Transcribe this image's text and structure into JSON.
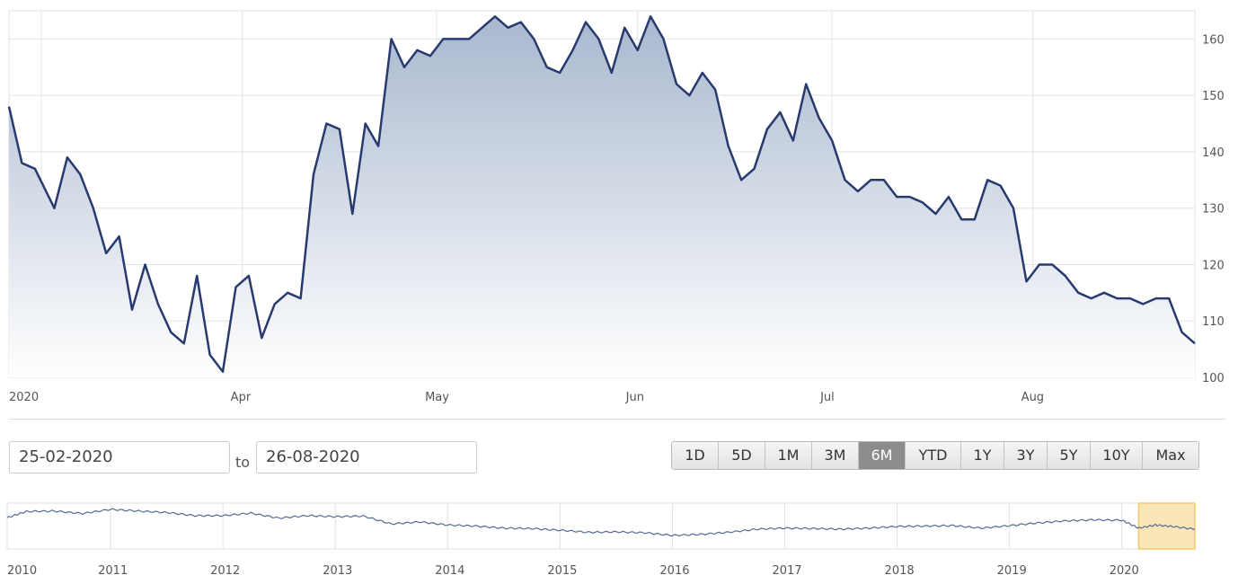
{
  "chart_data": {
    "type": "area",
    "y_ticks": [
      100,
      110,
      120,
      130,
      140,
      150,
      160
    ],
    "ylim": [
      100,
      165
    ],
    "x_labels": [
      "2020",
      "Apr",
      "May",
      "Jun",
      "Jul",
      "Aug"
    ],
    "x_label_dates": [
      "2020-03-01",
      "2020-04-01",
      "2020-05-01",
      "2020-06-01",
      "2020-07-01",
      "2020-08-01"
    ],
    "xlim": [
      "2020-02-25",
      "2020-08-26"
    ],
    "grid": true,
    "series": [
      {
        "x": [
          "2020-02-25",
          "2020-02-27",
          "2020-02-29",
          "2020-03-03",
          "2020-03-05",
          "2020-03-07",
          "2020-03-09",
          "2020-03-11",
          "2020-03-13",
          "2020-03-15",
          "2020-03-17",
          "2020-03-19",
          "2020-03-21",
          "2020-03-23",
          "2020-03-25",
          "2020-03-27",
          "2020-03-29",
          "2020-03-31",
          "2020-04-02",
          "2020-04-04",
          "2020-04-06",
          "2020-04-08",
          "2020-04-10",
          "2020-04-12",
          "2020-04-14",
          "2020-04-16",
          "2020-04-18",
          "2020-04-20",
          "2020-04-22",
          "2020-04-24",
          "2020-04-26",
          "2020-04-28",
          "2020-04-30",
          "2020-05-02",
          "2020-05-04",
          "2020-05-06",
          "2020-05-08",
          "2020-05-10",
          "2020-05-12",
          "2020-05-14",
          "2020-05-16",
          "2020-05-18",
          "2020-05-20",
          "2020-05-22",
          "2020-05-24",
          "2020-05-26",
          "2020-05-28",
          "2020-05-30",
          "2020-06-01",
          "2020-06-03",
          "2020-06-05",
          "2020-06-07",
          "2020-06-09",
          "2020-06-11",
          "2020-06-13",
          "2020-06-15",
          "2020-06-17",
          "2020-06-19",
          "2020-06-21",
          "2020-06-23",
          "2020-06-25",
          "2020-06-27",
          "2020-06-29",
          "2020-07-01",
          "2020-07-03",
          "2020-07-05",
          "2020-07-07",
          "2020-07-09",
          "2020-07-11",
          "2020-07-13",
          "2020-07-15",
          "2020-07-17",
          "2020-07-19",
          "2020-07-21",
          "2020-07-23",
          "2020-07-25",
          "2020-07-27",
          "2020-07-29",
          "2020-07-31",
          "2020-08-02",
          "2020-08-04",
          "2020-08-06",
          "2020-08-08",
          "2020-08-10",
          "2020-08-12",
          "2020-08-14",
          "2020-08-16",
          "2020-08-18",
          "2020-08-20",
          "2020-08-22",
          "2020-08-24",
          "2020-08-26"
        ],
        "y": [
          148,
          138,
          137,
          130,
          139,
          136,
          130,
          122,
          125,
          112,
          120,
          113,
          108,
          106,
          118,
          104,
          101,
          116,
          118,
          107,
          113,
          115,
          114,
          136,
          145,
          144,
          129,
          145,
          141,
          160,
          155,
          158,
          157,
          160,
          160,
          160,
          162,
          164,
          162,
          163,
          160,
          155,
          154,
          158,
          163,
          160,
          154,
          162,
          158,
          164,
          160,
          152,
          150,
          154,
          151,
          141,
          135,
          137,
          144,
          147,
          142,
          152,
          146,
          142,
          135,
          133,
          135,
          135,
          132,
          132,
          131,
          129,
          132,
          128,
          128,
          135,
          134,
          130,
          117,
          120,
          120,
          118,
          115,
          114,
          115,
          114,
          114,
          113,
          114,
          114,
          108,
          106
        ]
      }
    ]
  },
  "nav_chart": {
    "type": "line",
    "x_labels": [
      "2010",
      "2011",
      "2012",
      "2013",
      "2014",
      "2015",
      "2016",
      "2017",
      "2018",
      "2019",
      "2020"
    ],
    "x_label_years": [
      2010.0,
      2011.0,
      2012.0,
      2013.0,
      2014.0,
      2015.0,
      2016.0,
      2017.0,
      2018.0,
      2019.0,
      2020.0
    ],
    "xlim": [
      2010.08,
      2020.65
    ],
    "ylim": [
      80,
      300
    ],
    "x": [
      2010.08,
      2010.25,
      2010.5,
      2010.75,
      2011.0,
      2011.25,
      2011.5,
      2011.75,
      2012.0,
      2012.25,
      2012.5,
      2012.75,
      2013.0,
      2013.25,
      2013.5,
      2013.75,
      2014.0,
      2014.25,
      2014.5,
      2014.75,
      2015.0,
      2015.25,
      2015.5,
      2015.75,
      2016.0,
      2016.25,
      2016.5,
      2016.75,
      2017.0,
      2017.25,
      2017.5,
      2017.75,
      2018.0,
      2018.25,
      2018.5,
      2018.75,
      2019.0,
      2019.25,
      2019.5,
      2019.75,
      2020.0,
      2020.15,
      2020.3,
      2020.45,
      2020.65
    ],
    "y": [
      230,
      260,
      262,
      250,
      270,
      262,
      255,
      240,
      240,
      252,
      228,
      240,
      235,
      238,
      200,
      210,
      195,
      190,
      180,
      178,
      170,
      160,
      162,
      158,
      145,
      150,
      160,
      175,
      180,
      178,
      175,
      180,
      188,
      190,
      192,
      180,
      192,
      205,
      215,
      220,
      218,
      180,
      195,
      188,
      175
    ],
    "highlight": [
      "2020.15",
      "2020.65"
    ]
  },
  "controls": {
    "from_date": "25-02-2020",
    "to_label": "to",
    "to_date": "26-08-2020",
    "ranges": [
      "1D",
      "5D",
      "1M",
      "3M",
      "6M",
      "YTD",
      "1Y",
      "3Y",
      "5Y",
      "10Y",
      "Max"
    ],
    "active_range": "6M"
  },
  "colors": {
    "line": "#283a6e",
    "fill_top": "#a9b8cf",
    "fill_bottom": "#ffffff",
    "grid": "#e2e2e2",
    "highlight_fill": "#fbe6b8",
    "highlight_stroke": "#f0c96a"
  }
}
